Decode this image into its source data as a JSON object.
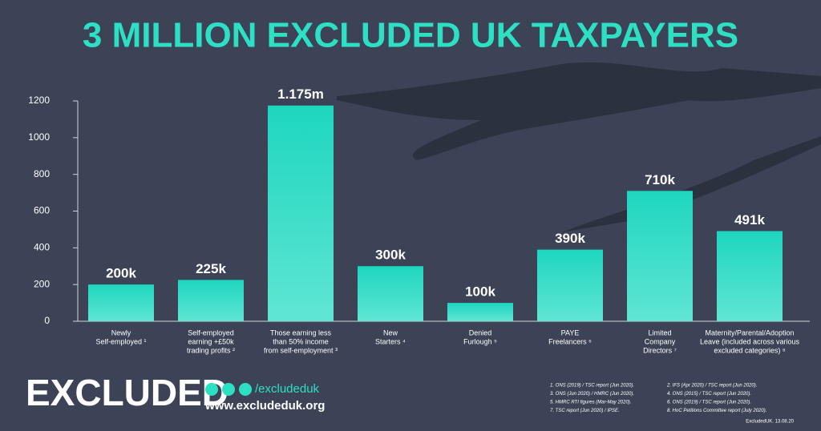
{
  "chart_data": {
    "type": "bar",
    "title": "3 MILLION EXCLUDED UK TAXPAYERS",
    "categories": [
      [
        "Newly",
        "Self-employed ¹"
      ],
      [
        "Self-employed",
        "earning +£50k",
        "trading profits ²"
      ],
      [
        "Those earning less",
        "than 50% income",
        "from self-employment ³"
      ],
      [
        "New",
        "Starters ⁴"
      ],
      [
        "Denied",
        "Furlough ⁵"
      ],
      [
        "PAYE",
        "Freelancers ⁶"
      ],
      [
        "Limited",
        "Company",
        "Directors ⁷"
      ],
      [
        "Maternity/Parental/Adoption",
        "Leave (included across various",
        "excluded categories) ⁸"
      ]
    ],
    "values": [
      200,
      225,
      1175,
      300,
      100,
      390,
      710,
      491
    ],
    "value_labels": [
      "200k",
      "225k",
      "1.175m",
      "300k",
      "100k",
      "390k",
      "710k",
      "491k"
    ],
    "color": "#1ed6bf",
    "ylim": [
      0,
      1200
    ],
    "yticks": [
      0,
      200,
      400,
      600,
      800,
      1000,
      1200
    ],
    "grid": false
  },
  "brand": {
    "logo": "EXCLUDED",
    "handle": "/excludeduk",
    "url": "www.excludeduk.org",
    "date": "ExcludedUK. 13.08.20"
  },
  "footnotes": [
    "1. ONS (2019) / TSC report (Jun 2020).",
    "2. IFS (Apr 2020) / TSC report (Jun 2020).",
    "3. ONS (Jun 2020) / HMRC (Jun 2020).",
    "4. ONS (2015) / TSC report (Jun 2020).",
    "5. HMRC RTI figures (Mar-May 2020).",
    "6. ONS (2019) / TSC report (Jun 2020).",
    "7. TSC report (Jun 2020) / IPSE.",
    "8. HoC Petitions Committee report (July 2020)."
  ]
}
